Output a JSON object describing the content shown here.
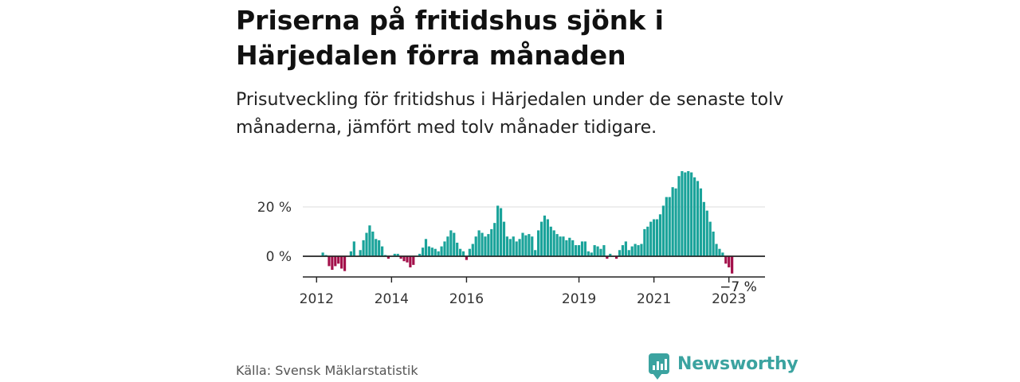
{
  "header": {
    "title": "Priserna på fritidshus sjönk i Härjedalen förra månaden",
    "subtitle": "Prisutveckling för fritidshus i Härjedalen under de senaste tolv månaderna, jämfört med tolv månader tidigare."
  },
  "footer": {
    "source": "Källa: Svensk Mäklarstatistik",
    "logo_text": "Newsworthy"
  },
  "colors": {
    "positive": "#1aa39a",
    "negative": "#a3104a",
    "logo": "#3ba3a0"
  },
  "chart_data": {
    "type": "bar",
    "title": "",
    "xlabel": "",
    "ylabel": "",
    "ylim": [
      -9,
      35
    ],
    "y_ticks": [
      {
        "value": 0,
        "label": "0 %"
      },
      {
        "value": 20,
        "label": "20 %"
      }
    ],
    "x_ticks": [
      {
        "index": 4,
        "label": "2012"
      },
      {
        "index": 28,
        "label": "2014"
      },
      {
        "index": 52,
        "label": "2016"
      },
      {
        "index": 88,
        "label": "2019"
      },
      {
        "index": 112,
        "label": "2021"
      },
      {
        "index": 136,
        "label": "2023"
      }
    ],
    "annotation": {
      "label": "−7 %",
      "index": 139
    },
    "grid": "horizontal",
    "values": [
      0,
      0,
      0,
      0,
      0,
      0,
      1.5,
      0.5,
      -4,
      -5.5,
      -4,
      -3,
      -5,
      -6,
      0,
      2,
      6,
      0,
      2.5,
      6.5,
      9.5,
      12.5,
      10,
      7,
      6.5,
      4,
      0.5,
      -1,
      0,
      1,
      1,
      -1,
      -2,
      -2.5,
      -4.5,
      -3.5,
      0,
      1,
      3.5,
      7,
      4,
      3.5,
      3,
      2,
      4,
      6,
      8,
      10.5,
      9.5,
      5.5,
      3,
      2,
      -1.5,
      3,
      5,
      8,
      10.5,
      9.5,
      8,
      9,
      11,
      13.5,
      20.5,
      19.5,
      14,
      8,
      7,
      8,
      6,
      7,
      9.5,
      8.5,
      9,
      8,
      2.5,
      10.5,
      14,
      16.5,
      15,
      12,
      10.5,
      9,
      8,
      8,
      6.5,
      7.5,
      6.5,
      4.5,
      4.5,
      6,
      6,
      2,
      1.5,
      4.5,
      4,
      3,
      4.5,
      -1,
      1,
      0,
      -1,
      2.5,
      4.5,
      6,
      2.5,
      4,
      5,
      4.5,
      5,
      11,
      12,
      14,
      15,
      15,
      17,
      20.5,
      24,
      24,
      28,
      27.5,
      32.5,
      34.5,
      34,
      34.5,
      34,
      32,
      30.5,
      27.5,
      22,
      18.5,
      14,
      10,
      5,
      3,
      1.5,
      -3,
      -4.5,
      -7
    ]
  }
}
